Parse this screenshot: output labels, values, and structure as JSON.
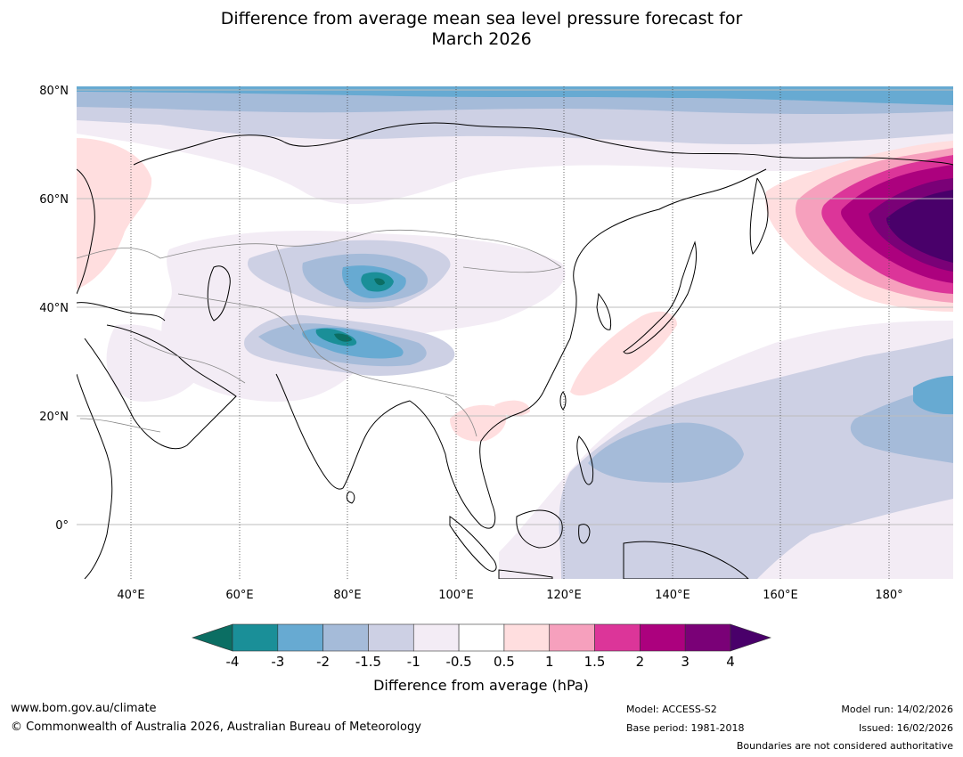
{
  "title_line1": "Difference from average mean sea level pressure forecast for",
  "title_line2": "March 2026",
  "lat_labels": [
    "80°N",
    "60°N",
    "40°N",
    "20°N",
    "0°"
  ],
  "lon_labels": [
    "40°E",
    "60°E",
    "80°E",
    "100°E",
    "120°E",
    "140°E",
    "160°E",
    "180°"
  ],
  "colorbar": {
    "label": "Difference from average (hPa)",
    "ticks": [
      "-4",
      "-3",
      "-2",
      "-1.5",
      "-1",
      "-0.5",
      "0.5",
      "1",
      "1.5",
      "2",
      "3",
      "4"
    ],
    "colors": [
      "#1a8f98",
      "#67aad2",
      "#a5bbd9",
      "#cdd0e4",
      "#f3ecf5",
      "#ffffff",
      "#ffdedf",
      "#f6a0bd",
      "#dc3599",
      "#ac017e",
      "#7a0177"
    ],
    "low_extend_color": "#0b6e63",
    "high_extend_color": "#49006a"
  },
  "footer": {
    "website": "www.bom.gov.au/climate",
    "copyright": "© Commonwealth of Australia 2026, Australian Bureau of Meteorology",
    "model": "Model: ACCESS-S2",
    "base_period": "Base period: 1981-2018",
    "model_run": "Model run: 14/02/2026",
    "issued": "Issued: 16/02/2026",
    "disclaimer": "Boundaries are not considered authoritative"
  }
}
